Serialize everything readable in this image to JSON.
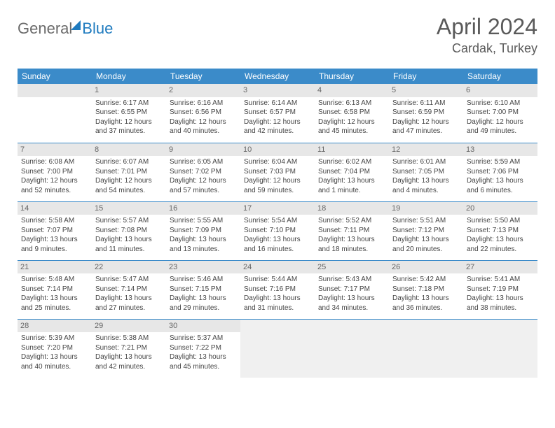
{
  "logo": {
    "part1": "General",
    "part2": "Blue"
  },
  "title": "April 2024",
  "location": "Cardak, Turkey",
  "header_bg": "#3b8bc9",
  "daynum_bg": "#e7e7e7",
  "row_border": "#3b8bc9",
  "daynames": [
    "Sunday",
    "Monday",
    "Tuesday",
    "Wednesday",
    "Thursday",
    "Friday",
    "Saturday"
  ],
  "weeks": [
    [
      {
        "num": "",
        "lines": []
      },
      {
        "num": "1",
        "lines": [
          "Sunrise: 6:17 AM",
          "Sunset: 6:55 PM",
          "Daylight: 12 hours",
          "and 37 minutes."
        ]
      },
      {
        "num": "2",
        "lines": [
          "Sunrise: 6:16 AM",
          "Sunset: 6:56 PM",
          "Daylight: 12 hours",
          "and 40 minutes."
        ]
      },
      {
        "num": "3",
        "lines": [
          "Sunrise: 6:14 AM",
          "Sunset: 6:57 PM",
          "Daylight: 12 hours",
          "and 42 minutes."
        ]
      },
      {
        "num": "4",
        "lines": [
          "Sunrise: 6:13 AM",
          "Sunset: 6:58 PM",
          "Daylight: 12 hours",
          "and 45 minutes."
        ]
      },
      {
        "num": "5",
        "lines": [
          "Sunrise: 6:11 AM",
          "Sunset: 6:59 PM",
          "Daylight: 12 hours",
          "and 47 minutes."
        ]
      },
      {
        "num": "6",
        "lines": [
          "Sunrise: 6:10 AM",
          "Sunset: 7:00 PM",
          "Daylight: 12 hours",
          "and 49 minutes."
        ]
      }
    ],
    [
      {
        "num": "7",
        "lines": [
          "Sunrise: 6:08 AM",
          "Sunset: 7:00 PM",
          "Daylight: 12 hours",
          "and 52 minutes."
        ]
      },
      {
        "num": "8",
        "lines": [
          "Sunrise: 6:07 AM",
          "Sunset: 7:01 PM",
          "Daylight: 12 hours",
          "and 54 minutes."
        ]
      },
      {
        "num": "9",
        "lines": [
          "Sunrise: 6:05 AM",
          "Sunset: 7:02 PM",
          "Daylight: 12 hours",
          "and 57 minutes."
        ]
      },
      {
        "num": "10",
        "lines": [
          "Sunrise: 6:04 AM",
          "Sunset: 7:03 PM",
          "Daylight: 12 hours",
          "and 59 minutes."
        ]
      },
      {
        "num": "11",
        "lines": [
          "Sunrise: 6:02 AM",
          "Sunset: 7:04 PM",
          "Daylight: 13 hours",
          "and 1 minute."
        ]
      },
      {
        "num": "12",
        "lines": [
          "Sunrise: 6:01 AM",
          "Sunset: 7:05 PM",
          "Daylight: 13 hours",
          "and 4 minutes."
        ]
      },
      {
        "num": "13",
        "lines": [
          "Sunrise: 5:59 AM",
          "Sunset: 7:06 PM",
          "Daylight: 13 hours",
          "and 6 minutes."
        ]
      }
    ],
    [
      {
        "num": "14",
        "lines": [
          "Sunrise: 5:58 AM",
          "Sunset: 7:07 PM",
          "Daylight: 13 hours",
          "and 9 minutes."
        ]
      },
      {
        "num": "15",
        "lines": [
          "Sunrise: 5:57 AM",
          "Sunset: 7:08 PM",
          "Daylight: 13 hours",
          "and 11 minutes."
        ]
      },
      {
        "num": "16",
        "lines": [
          "Sunrise: 5:55 AM",
          "Sunset: 7:09 PM",
          "Daylight: 13 hours",
          "and 13 minutes."
        ]
      },
      {
        "num": "17",
        "lines": [
          "Sunrise: 5:54 AM",
          "Sunset: 7:10 PM",
          "Daylight: 13 hours",
          "and 16 minutes."
        ]
      },
      {
        "num": "18",
        "lines": [
          "Sunrise: 5:52 AM",
          "Sunset: 7:11 PM",
          "Daylight: 13 hours",
          "and 18 minutes."
        ]
      },
      {
        "num": "19",
        "lines": [
          "Sunrise: 5:51 AM",
          "Sunset: 7:12 PM",
          "Daylight: 13 hours",
          "and 20 minutes."
        ]
      },
      {
        "num": "20",
        "lines": [
          "Sunrise: 5:50 AM",
          "Sunset: 7:13 PM",
          "Daylight: 13 hours",
          "and 22 minutes."
        ]
      }
    ],
    [
      {
        "num": "21",
        "lines": [
          "Sunrise: 5:48 AM",
          "Sunset: 7:14 PM",
          "Daylight: 13 hours",
          "and 25 minutes."
        ]
      },
      {
        "num": "22",
        "lines": [
          "Sunrise: 5:47 AM",
          "Sunset: 7:14 PM",
          "Daylight: 13 hours",
          "and 27 minutes."
        ]
      },
      {
        "num": "23",
        "lines": [
          "Sunrise: 5:46 AM",
          "Sunset: 7:15 PM",
          "Daylight: 13 hours",
          "and 29 minutes."
        ]
      },
      {
        "num": "24",
        "lines": [
          "Sunrise: 5:44 AM",
          "Sunset: 7:16 PM",
          "Daylight: 13 hours",
          "and 31 minutes."
        ]
      },
      {
        "num": "25",
        "lines": [
          "Sunrise: 5:43 AM",
          "Sunset: 7:17 PM",
          "Daylight: 13 hours",
          "and 34 minutes."
        ]
      },
      {
        "num": "26",
        "lines": [
          "Sunrise: 5:42 AM",
          "Sunset: 7:18 PM",
          "Daylight: 13 hours",
          "and 36 minutes."
        ]
      },
      {
        "num": "27",
        "lines": [
          "Sunrise: 5:41 AM",
          "Sunset: 7:19 PM",
          "Daylight: 13 hours",
          "and 38 minutes."
        ]
      }
    ],
    [
      {
        "num": "28",
        "lines": [
          "Sunrise: 5:39 AM",
          "Sunset: 7:20 PM",
          "Daylight: 13 hours",
          "and 40 minutes."
        ]
      },
      {
        "num": "29",
        "lines": [
          "Sunrise: 5:38 AM",
          "Sunset: 7:21 PM",
          "Daylight: 13 hours",
          "and 42 minutes."
        ]
      },
      {
        "num": "30",
        "lines": [
          "Sunrise: 5:37 AM",
          "Sunset: 7:22 PM",
          "Daylight: 13 hours",
          "and 45 minutes."
        ]
      },
      {
        "num": "",
        "lines": [],
        "trailing": true
      },
      {
        "num": "",
        "lines": [],
        "trailing": true
      },
      {
        "num": "",
        "lines": [],
        "trailing": true
      },
      {
        "num": "",
        "lines": [],
        "trailing": true
      }
    ]
  ]
}
